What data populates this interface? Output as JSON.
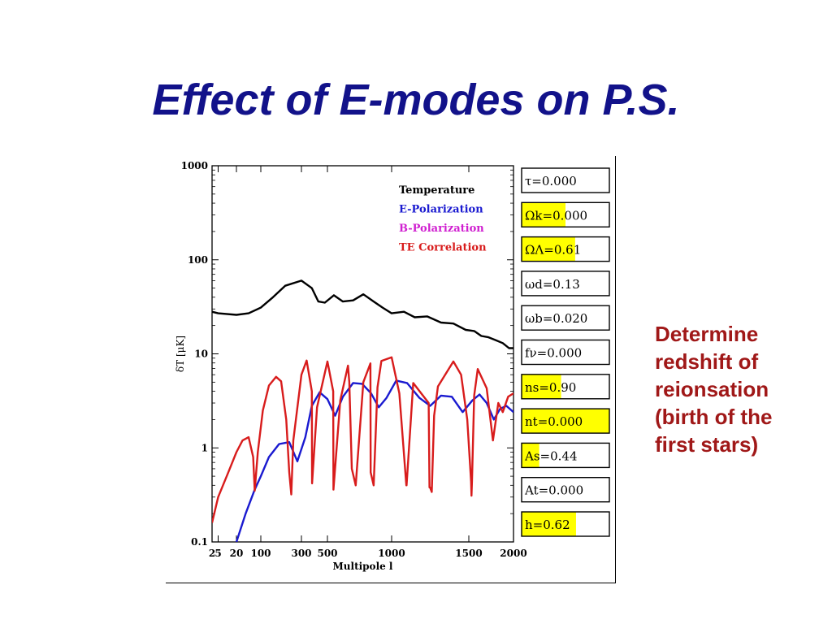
{
  "slide": {
    "title": "Effect of E-modes on P.S.",
    "note_lines": [
      "Determine",
      "redshift of",
      "reionsation",
      "(birth of the",
      "first stars)"
    ]
  },
  "colors": {
    "title": "#12128a",
    "note": "#a01818",
    "temperature": "#000000",
    "e_polarization": "#1a1ad0",
    "b_polarization": "#d020d0",
    "te_correlation": "#d81c1c",
    "slider_fill": "#ffff00"
  },
  "chart_data": {
    "type": "line",
    "ylabel": "δT [μK]",
    "xlabel": "Multipole l",
    "y_scale": "log",
    "ylim": [
      0.1,
      1000
    ],
    "xlim": [
      2,
      2000
    ],
    "x_ticks": [
      "2",
      "5",
      "20",
      "100",
      "300",
      "500",
      "1000",
      "1500",
      "2000"
    ],
    "y_ticks": [
      "1000",
      "100",
      "10",
      "1",
      "0.1"
    ],
    "legend": [
      {
        "name": "Temperature",
        "color": "#000000"
      },
      {
        "name": "E-Polarization",
        "color": "#1a1ad0"
      },
      {
        "name": "B-Polarization",
        "color": "#d020d0"
      },
      {
        "name": "TE Correlation",
        "color": "#d81c1c"
      }
    ],
    "legend_position": "top-right",
    "series": [
      {
        "name": "Temperature",
        "color": "#000000",
        "x": [
          2,
          5,
          20,
          60,
          100,
          160,
          220,
          300,
          380,
          430,
          480,
          550,
          620,
          700,
          780,
          860,
          930,
          1000,
          1080,
          1150,
          1230,
          1320,
          1400,
          1480,
          1560,
          1640,
          1720,
          1800,
          1880,
          1950,
          2000
        ],
        "y": [
          28,
          27,
          26,
          27,
          31,
          40,
          53,
          60,
          50,
          36,
          35,
          42,
          36,
          37,
          43,
          36,
          31,
          27,
          28,
          24.5,
          25,
          21.5,
          21,
          18,
          17.5,
          15.5,
          15,
          14,
          13,
          11.5,
          11.5
        ]
      },
      {
        "name": "E-Polarization",
        "color": "#1a1ad0",
        "x": [
          20,
          50,
          80,
          100,
          140,
          190,
          240,
          280,
          330,
          380,
          440,
          500,
          560,
          620,
          700,
          770,
          840,
          900,
          960,
          1030,
          1100,
          1180,
          1250,
          1320,
          1390,
          1460,
          1540,
          1620,
          1700,
          1780,
          1850,
          1920,
          2000
        ],
        "y": [
          0.1,
          0.2,
          0.36,
          0.5,
          0.8,
          1.1,
          1.15,
          0.72,
          1.3,
          2.8,
          3.9,
          3.3,
          2.2,
          3.5,
          4.9,
          4.8,
          3.8,
          2.7,
          3.4,
          5.2,
          4.9,
          3.4,
          2.8,
          3.6,
          3.5,
          2.4,
          3.2,
          3.7,
          3.0,
          2.0,
          2.6,
          2.8,
          2.4
        ]
      },
      {
        "name": "TE Correlation",
        "color": "#d81c1c",
        "x": [
          2,
          5,
          10,
          20,
          40,
          60,
          75,
          80,
          90,
          110,
          140,
          175,
          200,
          225,
          240,
          250,
          260,
          300,
          340,
          380,
          382,
          420,
          500,
          545,
          547,
          600,
          660,
          670,
          690,
          720,
          780,
          835,
          837,
          860,
          890,
          920,
          1000,
          1050,
          1095,
          1097,
          1140,
          1240,
          1245,
          1249,
          1260,
          1275,
          1300,
          1400,
          1450,
          1490,
          1525,
          1530,
          1535,
          1560,
          1600,
          1700,
          1770,
          1830,
          1880,
          1940,
          2000
        ],
        "y": [
          0.16,
          0.3,
          0.55,
          0.9,
          1.2,
          1.3,
          0.8,
          0.35,
          0.9,
          2.5,
          4.6,
          5.7,
          5.1,
          2.0,
          0.55,
          0.32,
          1.2,
          6.0,
          8.5,
          4.0,
          0.42,
          2.7,
          8.3,
          4.0,
          0.36,
          3.2,
          7.5,
          5.0,
          0.6,
          0.4,
          5.0,
          7.9,
          0.55,
          0.4,
          4.4,
          8.4,
          9.2,
          3.8,
          0.4,
          0.4,
          4.9,
          3.0,
          0.38,
          0.38,
          0.34,
          2.2,
          4.5,
          8.3,
          6.0,
          2.0,
          0.44,
          0.31,
          0.44,
          3.6,
          6.9,
          4.3,
          1.2,
          3.0,
          2.4,
          3.5,
          3.8
        ]
      }
    ]
  },
  "params": [
    {
      "label": "τ=0.000",
      "fill": 0.0
    },
    {
      "label": "Ωk=0.000",
      "fill": 0.5
    },
    {
      "label": "ΩΛ=0.61",
      "fill": 0.61
    },
    {
      "label": "ωd=0.13",
      "fill": 0.0
    },
    {
      "label": "ωb=0.020",
      "fill": 0.0
    },
    {
      "label": "fν=0.000",
      "fill": 0.0
    },
    {
      "label": "ns=0.90",
      "fill": 0.45
    },
    {
      "label": "nt=0.000",
      "fill": 1.0
    },
    {
      "label": "As=0.44",
      "fill": 0.2
    },
    {
      "label": "At=0.000",
      "fill": 0.0
    },
    {
      "label": "h=0.62",
      "fill": 0.62
    }
  ]
}
